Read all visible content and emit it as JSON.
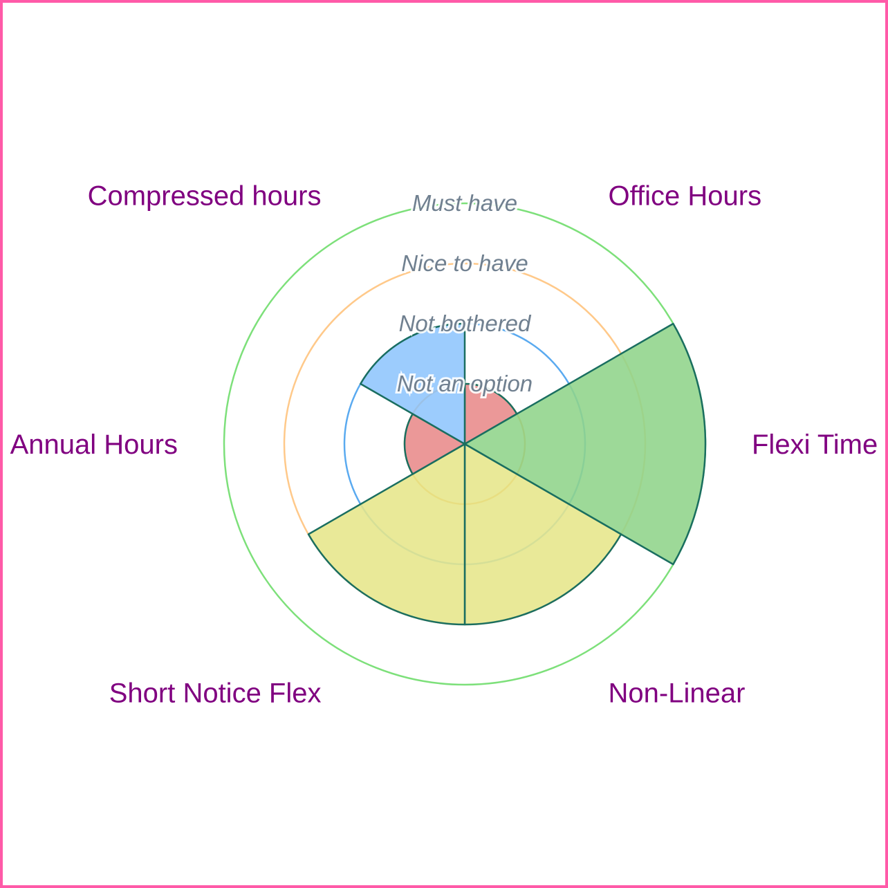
{
  "chart_data": {
    "type": "polar-area",
    "scale_max": 4,
    "rings": [
      {
        "label": "Not an option",
        "color": "#f5a442"
      },
      {
        "label": "Not bothered",
        "color": "#5aaaf0"
      },
      {
        "label": "Nice to have",
        "color": "#ffc98a"
      },
      {
        "label": "Must have",
        "color": "#7de07a"
      }
    ],
    "categories": [
      {
        "label": "Office Hours",
        "value": 1,
        "color": "#e88a8a"
      },
      {
        "label": "Flexi Time",
        "value": 4,
        "color": "#8fd48a"
      },
      {
        "label": "Non-Linear",
        "value": 3,
        "color": "#e6e68a"
      },
      {
        "label": "Short Notice Flex",
        "value": 3,
        "color": "#e6e68a"
      },
      {
        "label": "Annual Hours",
        "value": 1,
        "color": "#e88a8a"
      },
      {
        "label": "Compressed hours",
        "value": 2,
        "color": "#8ec5fd"
      }
    ],
    "segment_stroke": "#1a6e60",
    "category_label_color": "#800080",
    "ring_label_color": "#708090"
  }
}
